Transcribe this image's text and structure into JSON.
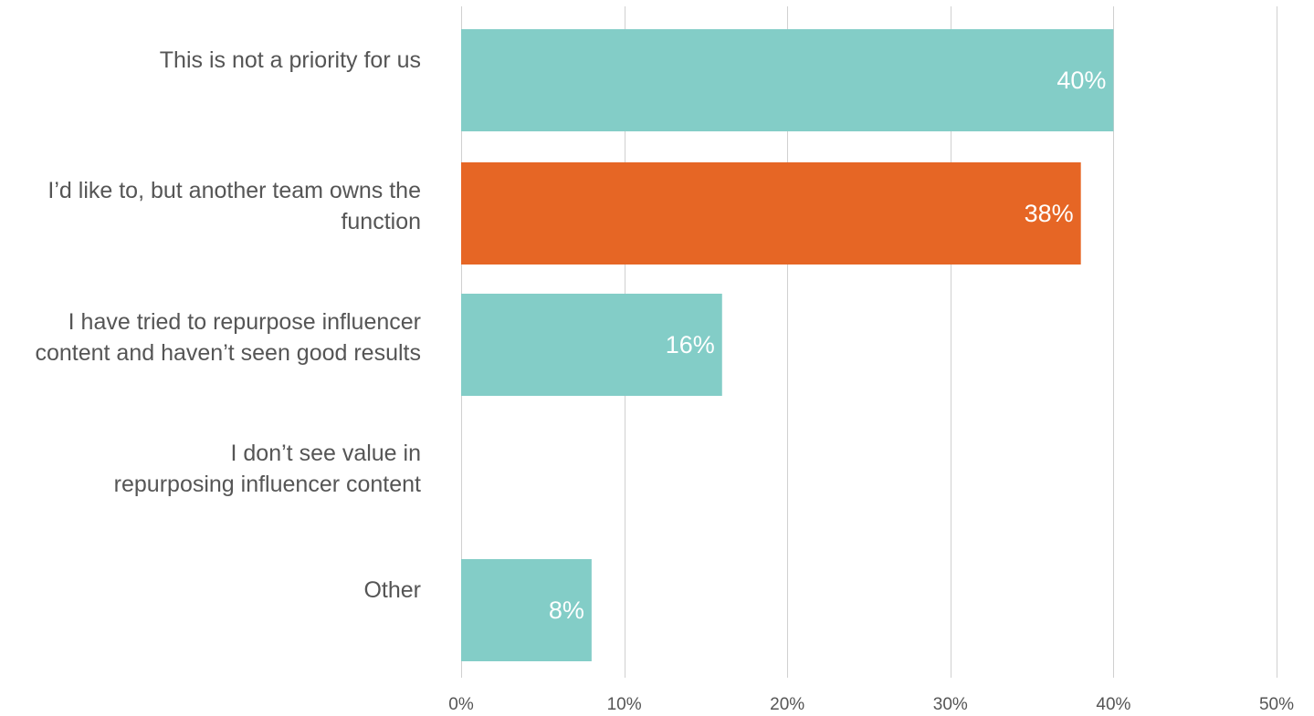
{
  "chart_data": {
    "type": "bar",
    "orientation": "horizontal",
    "categories": [
      "This is not a priority for us",
      "I’d like to, but another team owns the function",
      "I have tried to repurpose influencer content and haven’t seen good results",
      "I don’t see value in repurposing influencer content",
      "Other"
    ],
    "category_lines": [
      [
        "This is not a priority for us"
      ],
      [
        "I’d like to, but another team owns the",
        "function"
      ],
      [
        "I have tried to repurpose influencer",
        "content and haven’t seen good results"
      ],
      [
        "I don’t see value in",
        "repurposing influencer content"
      ],
      [
        "Other"
      ]
    ],
    "values": [
      40,
      38,
      16,
      0,
      8
    ],
    "data_labels": [
      "40%",
      "38%",
      "16%",
      "",
      "8%"
    ],
    "bar_colors": [
      "#83CDC7",
      "#E66625",
      "#83CDC7",
      "#83CDC7",
      "#83CDC7"
    ],
    "xlim": [
      0,
      50
    ],
    "x_ticks": [
      0,
      10,
      20,
      30,
      40,
      50
    ],
    "x_tick_labels": [
      "0%",
      "10%",
      "20%",
      "30%",
      "40%",
      "50%"
    ],
    "grid": "vertical",
    "grid_color": "#d0d0d0",
    "label_color": "#555555",
    "data_label_color": "#ffffff",
    "title": "",
    "xlabel": "",
    "ylabel": ""
  }
}
